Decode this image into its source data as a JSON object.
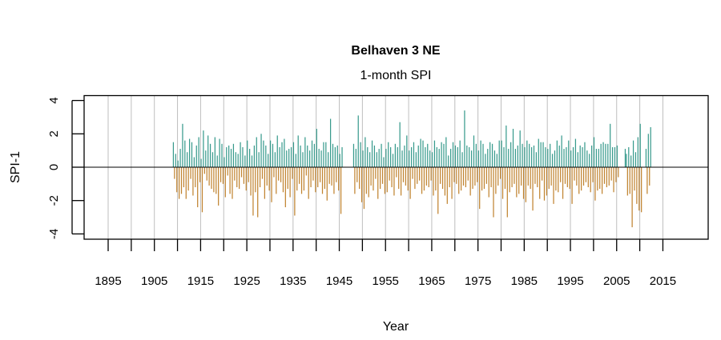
{
  "chart_data": {
    "type": "bar",
    "title": "Belhaven 3 NE",
    "subtitle": "1-month SPI",
    "xlabel": "Year",
    "ylabel": "SPI-1",
    "xlim": [
      1889.8,
      2024.8
    ],
    "ylim": [
      -4.3,
      4.3
    ],
    "x_ticks": [
      1895,
      1900,
      1905,
      1910,
      1915,
      1920,
      1925,
      1930,
      1935,
      1940,
      1945,
      1950,
      1955,
      1960,
      1965,
      1970,
      1975,
      1980,
      1985,
      1990,
      1995,
      2000,
      2005,
      2010,
      2015
    ],
    "x_tick_labels": [
      "1895",
      "1905",
      "1915",
      "1925",
      "1935",
      "1945",
      "1955",
      "1965",
      "1975",
      "1985",
      "1995",
      "2005",
      "2015"
    ],
    "y_ticks": [
      4,
      2,
      0,
      -2,
      -4
    ],
    "y_tick_labels": [
      "4",
      "2",
      "0",
      "-2",
      "-4"
    ],
    "grid": true,
    "grid_x_step": 5,
    "colors": {
      "positive": "#379a8c",
      "negative": "#c0832f",
      "grid": "#bebebe",
      "zero_line": "#000000"
    },
    "series": [
      {
        "x_start": 1909.0,
        "x_step": 0.25,
        "values": [
          1.5,
          -0.7,
          0.8,
          -1.5,
          0.4,
          -1.9,
          1.1,
          -1.6,
          2.6,
          -1.2,
          1.6,
          -1.9,
          0.9,
          -1.4,
          1.7,
          -0.7,
          1.5,
          -1.7,
          0.6,
          -1.2,
          1.3,
          -2.4,
          1.8,
          -0.9,
          0.5,
          -2.7,
          2.2,
          -0.4,
          1.0,
          -0.8,
          1.9,
          -1.1,
          1.4,
          -1.3,
          0.9,
          -1.5,
          1.8,
          -1.6,
          0.7,
          -2.3,
          1.7,
          -0.9,
          1.4,
          -1.0,
          0.6,
          -1.8,
          1.2,
          -0.5,
          1.3,
          -1.6,
          1.1,
          -1.9,
          1.4,
          -0.8,
          0.9,
          -1.2,
          0.8,
          -1.3,
          1.5,
          -0.6,
          1.2,
          -1.0,
          0.7,
          -1.4,
          1.6,
          -0.9,
          1.1,
          -1.7,
          0.7,
          -2.9,
          1.3,
          -1.5,
          1.8,
          -3.0,
          0.9,
          -1.2,
          2.0,
          -0.7,
          1.6,
          -1.9,
          1.3,
          -1.1,
          0.8,
          -1.4,
          1.6,
          -2.1,
          1.4,
          -0.6,
          0.9,
          -1.6,
          1.9,
          -0.8,
          1.2,
          -0.9,
          1.5,
          -1.5,
          1.7,
          -2.4,
          1.0,
          -1.3,
          1.1,
          -1.8,
          1.2,
          -0.7,
          1.5,
          -2.9,
          0.8,
          -1.4,
          1.9,
          -1.0,
          1.3,
          -1.6,
          0.9,
          -1.4,
          1.8,
          -0.5,
          1.3,
          -1.9,
          1.0,
          -1.2,
          1.6,
          -0.8,
          1.4,
          -1.5,
          2.3,
          -1.2,
          1.1,
          -0.9,
          1.0,
          -1.6,
          1.5,
          -1.3,
          1.5,
          -2.0,
          0.9,
          -1.0,
          2.9,
          -1.1,
          1.4,
          -1.6,
          1.2,
          -0.9,
          1.3,
          -1.4,
          0.8,
          -2.8,
          1.2,
          null,
          null,
          null,
          null,
          null,
          null,
          null,
          null,
          null,
          1.4,
          -1.6,
          1.1,
          -0.9,
          3.1,
          -1.3,
          1.5,
          -2.1,
          1.0,
          -2.5,
          1.8,
          -1.6,
          1.2,
          -1.8,
          0.9,
          -1.1,
          1.6,
          -1.4,
          1.3,
          -0.7,
          0.9,
          -1.9,
          1.1,
          -1.3,
          1.4,
          -1.0,
          0.6,
          -1.6,
          1.1,
          -1.5,
          1.5,
          -0.8,
          1.2,
          -1.2,
          0.8,
          -1.7,
          1.4,
          -0.6,
          1.2,
          -1.3,
          2.7,
          -1.7,
          1.0,
          -0.9,
          1.3,
          -1.1,
          1.9,
          -1.4,
          1.0,
          -1.9,
          1.2,
          -0.7,
          1.5,
          -1.3,
          0.9,
          -1.0,
          1.3,
          -0.8,
          1.7,
          -1.6,
          1.6,
          -1.4,
          1.2,
          -1.1,
          1.4,
          -1.2,
          1.0,
          -0.8,
          0.9,
          -1.7,
          1.6,
          -1.4,
          1.2,
          -2.8,
          1.1,
          -1.0,
          1.5,
          -1.3,
          1.4,
          -1.7,
          1.8,
          -2.2,
          0.7,
          -1.2,
          1.1,
          -1.9,
          1.5,
          -0.9,
          1.3,
          -1.0,
          1.2,
          -1.6,
          1.6,
          -1.4,
          0.9,
          -1.1,
          3.4,
          -1.2,
          1.3,
          -0.8,
          1.2,
          -1.7,
          1.0,
          -1.3,
          1.9,
          -1.1,
          1.4,
          -0.9,
          1.0,
          -2.5,
          1.6,
          -1.4,
          1.4,
          -1.3,
          0.8,
          -1.0,
          1.1,
          -1.8,
          1.5,
          -1.2,
          1.4,
          -3.0,
          1.0,
          -1.6,
          0.8,
          -1.1,
          1.6,
          -0.7,
          1.6,
          -1.9,
          1.2,
          -1.3,
          2.5,
          -3.0,
          1.1,
          -1.5,
          1.5,
          -1.2,
          2.3,
          -1.0,
          1.1,
          -1.8,
          1.3,
          -1.6,
          2.2,
          -1.1,
          1.4,
          -1.9,
          1.2,
          -2.1,
          1.6,
          -1.1,
          1.4,
          -1.3,
          1.2,
          -2.6,
          1.3,
          -1.0,
          0.9,
          -1.2,
          1.7,
          -1.9,
          1.5,
          -0.8,
          1.5,
          -2.0,
          1.2,
          -1.7,
          1.1,
          -1.3,
          1.4,
          -1.1,
          0.8,
          -2.2,
          1.0,
          -1.4,
          1.6,
          -1.5,
          1.3,
          -0.9,
          1.9,
          -1.9,
          1.1,
          -1.0,
          1.2,
          -1.2,
          1.6,
          -1.3,
          1.0,
          -2.2,
          1.2,
          -0.8,
          1.7,
          -1.1,
          0.9,
          -1.6,
          1.3,
          -1.4,
          1.2,
          -1.1,
          1.5,
          -0.9,
          1.0,
          -1.2,
          0.8,
          -1.5,
          1.3,
          -0.9,
          1.8,
          -2.0,
          1.1,
          -1.4,
          1.1,
          -1.3,
          1.4,
          -1.6,
          1.5,
          -1.0,
          1.4,
          -1.2,
          1.4,
          -1.1,
          2.6,
          -0.8,
          1.2,
          -1.5,
          1.2,
          -0.9,
          1.3,
          -0.6,
          null,
          null,
          null,
          null,
          null,
          1.1,
          0.8,
          -1.7,
          1.2,
          -1.6,
          0.7,
          -3.6,
          1.6,
          -1.4,
          0.9,
          -2.2,
          1.8,
          -2.6,
          2.6,
          -2.7,
          null,
          null,
          null,
          1.1,
          -1.6,
          2.0,
          -1.1,
          2.4,
          null,
          null
        ]
      }
    ]
  }
}
